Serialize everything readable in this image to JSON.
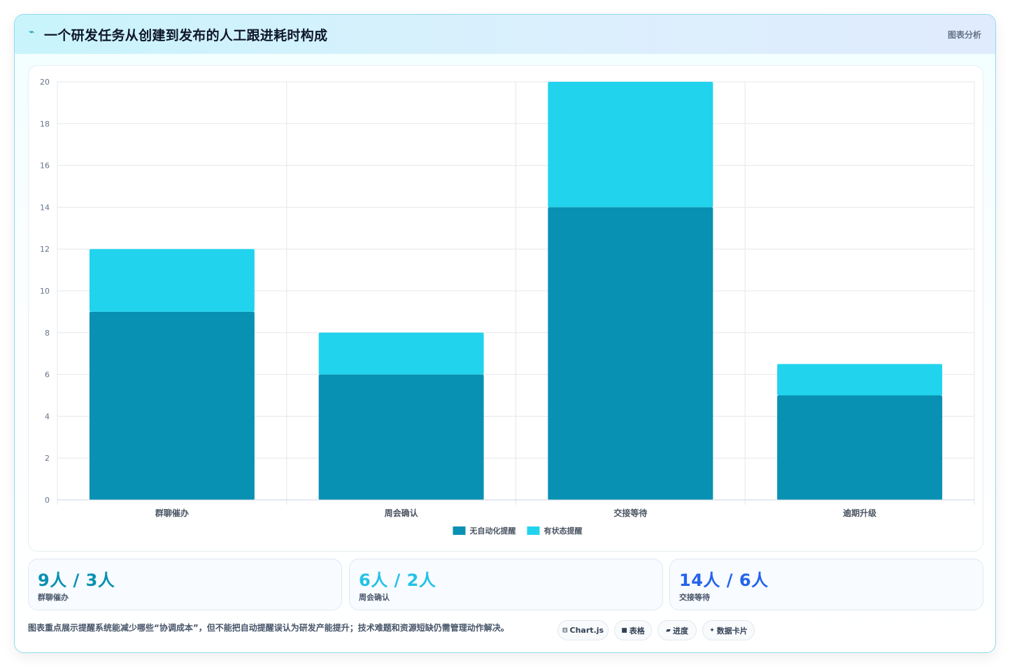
{
  "header": {
    "icon": "lightning-icon",
    "title": "一个研发任务从创建到发布的人工跟进耗时构成",
    "link_label": "图表分析"
  },
  "chart_data": {
    "type": "bar",
    "stacked": true,
    "categories": [
      "群聊催办",
      "周会确认",
      "交接等待",
      "逾期升级"
    ],
    "series": [
      {
        "name": "无自动化提醒",
        "color": "#0891b2",
        "values": [
          9,
          6,
          14,
          5
        ]
      },
      {
        "name": "有状态提醒",
        "color": "#22d3ee",
        "values": [
          3,
          2,
          6,
          1.5
        ]
      }
    ],
    "ylim": [
      0,
      20
    ],
    "yticks": [
      0,
      2,
      4,
      6,
      8,
      10,
      12,
      14,
      16,
      18,
      20
    ],
    "grid": true,
    "legend": "bottom"
  },
  "stats": [
    {
      "value": "9人 / 3人",
      "label": "群聊催办",
      "color": "#0891b2"
    },
    {
      "value": "6人 / 2人",
      "label": "周会确认",
      "color": "#22c3e6"
    },
    {
      "value": "14人 / 6人",
      "label": "交接等待",
      "color": "#2563eb"
    }
  ],
  "footnote": "图表重点展示提醒系统能减少哪些“协调成本”，但不能把自动提醒误认为研发产能提升；技术难题和资源短缺仍需管理动作解决。",
  "tags": [
    {
      "icon": "code-icon",
      "glyph": "⊟",
      "label": "Chart.js"
    },
    {
      "icon": "table-icon",
      "glyph": "■",
      "label": "表格"
    },
    {
      "icon": "progress-icon",
      "glyph": "▰",
      "label": "进度"
    },
    {
      "icon": "card-icon",
      "glyph": "✦",
      "label": "数据卡片"
    }
  ]
}
